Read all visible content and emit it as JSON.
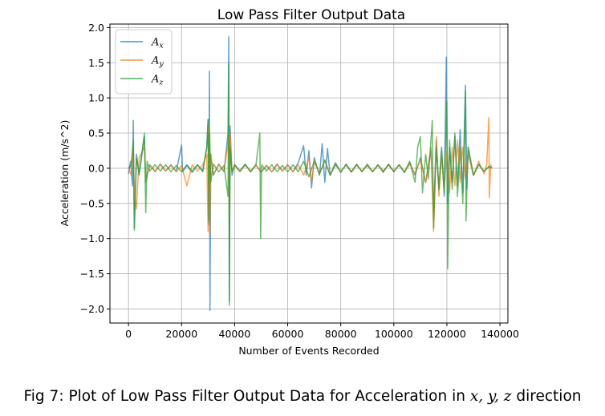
{
  "chart_data": {
    "type": "line",
    "title": "Low Pass Filter Output Data",
    "xlabel": "Number of Events Recorded",
    "ylabel": "Acceleration (m/s^2)",
    "xlim": [
      -7000,
      143000
    ],
    "ylim": [
      -2.2,
      2.05
    ],
    "xticks": [
      0,
      20000,
      40000,
      60000,
      80000,
      100000,
      120000,
      140000
    ],
    "xtick_labels": [
      "0",
      "20000",
      "40000",
      "60000",
      "80000",
      "100000",
      "120000",
      "140000"
    ],
    "yticks": [
      -2.0,
      -1.5,
      -1.0,
      -0.5,
      0.0,
      0.5,
      1.0,
      1.5,
      2.0
    ],
    "ytick_labels": [
      "−2.0",
      "−1.5",
      "−1.0",
      "−0.5",
      "0.0",
      "0.5",
      "1.0",
      "1.5",
      "2.0"
    ],
    "grid": true,
    "legend_position": "top-left",
    "series": [
      {
        "name": "A_x",
        "label_main": "A",
        "label_sub": "x",
        "color": "#1f77b4",
        "points": [
          [
            0,
            -0.08
          ],
          [
            800,
            0.1
          ],
          [
            1500,
            -0.25
          ],
          [
            1800,
            0.68
          ],
          [
            2200,
            -0.85
          ],
          [
            3000,
            0.2
          ],
          [
            4000,
            -0.1
          ],
          [
            6000,
            0.45
          ],
          [
            6500,
            -0.2
          ],
          [
            8000,
            0.05
          ],
          [
            10000,
            -0.05
          ],
          [
            12000,
            0.06
          ],
          [
            14000,
            -0.04
          ],
          [
            16000,
            0.05
          ],
          [
            18000,
            -0.05
          ],
          [
            20000,
            0.33
          ],
          [
            20400,
            -0.05
          ],
          [
            22000,
            0.04
          ],
          [
            24000,
            -0.06
          ],
          [
            26000,
            0.05
          ],
          [
            28000,
            -0.04
          ],
          [
            29500,
            0.3
          ],
          [
            30000,
            0.7
          ],
          [
            30200,
            -0.8
          ],
          [
            30500,
            1.38
          ],
          [
            30700,
            -2.02
          ],
          [
            31000,
            0.2
          ],
          [
            32000,
            -0.1
          ],
          [
            34000,
            0.06
          ],
          [
            36000,
            -0.05
          ],
          [
            37500,
            0.5
          ],
          [
            37800,
            1.87
          ],
          [
            38000,
            -1.9
          ],
          [
            38300,
            0.6
          ],
          [
            39000,
            -0.1
          ],
          [
            40000,
            0.05
          ],
          [
            42000,
            -0.04
          ],
          [
            44000,
            0.06
          ],
          [
            46000,
            -0.05
          ],
          [
            48000,
            0.05
          ],
          [
            50000,
            -0.06
          ],
          [
            52000,
            0.04
          ],
          [
            54000,
            -0.05
          ],
          [
            56000,
            0.06
          ],
          [
            58000,
            -0.04
          ],
          [
            60000,
            0.05
          ],
          [
            62000,
            -0.05
          ],
          [
            64000,
            0.08
          ],
          [
            66000,
            0.32
          ],
          [
            67000,
            -0.1
          ],
          [
            68000,
            0.25
          ],
          [
            69000,
            -0.28
          ],
          [
            70000,
            0.15
          ],
          [
            72000,
            -0.1
          ],
          [
            73000,
            0.35
          ],
          [
            74000,
            -0.2
          ],
          [
            75000,
            0.28
          ],
          [
            76000,
            -0.1
          ],
          [
            78000,
            0.08
          ],
          [
            80000,
            -0.06
          ],
          [
            82000,
            0.06
          ],
          [
            84000,
            -0.05
          ],
          [
            86000,
            0.06
          ],
          [
            88000,
            -0.05
          ],
          [
            90000,
            0.06
          ],
          [
            92000,
            -0.05
          ],
          [
            94000,
            0.05
          ],
          [
            96000,
            -0.06
          ],
          [
            98000,
            0.06
          ],
          [
            100000,
            -0.05
          ],
          [
            102000,
            0.05
          ],
          [
            104000,
            -0.06
          ],
          [
            106000,
            0.08
          ],
          [
            108000,
            -0.1
          ],
          [
            110000,
            0.15
          ],
          [
            112000,
            -0.2
          ],
          [
            114000,
            0.25
          ],
          [
            115000,
            -0.6
          ],
          [
            116000,
            0.4
          ],
          [
            117000,
            -0.3
          ],
          [
            118000,
            0.3
          ],
          [
            119000,
            -0.4
          ],
          [
            119800,
            1.58
          ],
          [
            120200,
            -0.5
          ],
          [
            121000,
            0.3
          ],
          [
            122000,
            -0.2
          ],
          [
            123000,
            0.45
          ],
          [
            124000,
            -0.25
          ],
          [
            125000,
            0.55
          ],
          [
            126000,
            -0.35
          ],
          [
            127000,
            1.18
          ],
          [
            127500,
            -0.3
          ],
          [
            128000,
            0.3
          ],
          [
            130000,
            -0.1
          ],
          [
            132000,
            0.06
          ],
          [
            134000,
            -0.05
          ],
          [
            136000,
            0.03
          ],
          [
            137000,
            0.0
          ]
        ]
      },
      {
        "name": "A_y",
        "label_main": "A",
        "label_sub": "y",
        "color": "#ff7f0e",
        "points": [
          [
            0,
            0.02
          ],
          [
            1000,
            -0.1
          ],
          [
            1800,
            0.3
          ],
          [
            2200,
            -0.35
          ],
          [
            3000,
            -0.58
          ],
          [
            4000,
            0.15
          ],
          [
            6000,
            0.3
          ],
          [
            6500,
            -0.15
          ],
          [
            8000,
            0.04
          ],
          [
            10000,
            -0.04
          ],
          [
            12000,
            0.05
          ],
          [
            14000,
            -0.04
          ],
          [
            16000,
            0.04
          ],
          [
            18000,
            -0.05
          ],
          [
            20000,
            0.04
          ],
          [
            22000,
            -0.25
          ],
          [
            24000,
            0.05
          ],
          [
            26000,
            -0.04
          ],
          [
            28000,
            0.05
          ],
          [
            29500,
            0.2
          ],
          [
            30000,
            -0.9
          ],
          [
            30300,
            0.6
          ],
          [
            30600,
            -0.95
          ],
          [
            31000,
            0.2
          ],
          [
            32000,
            -0.08
          ],
          [
            34000,
            0.05
          ],
          [
            36000,
            -0.04
          ],
          [
            37700,
            0.4
          ],
          [
            38000,
            -0.68
          ],
          [
            38300,
            0.5
          ],
          [
            39000,
            -0.05
          ],
          [
            40000,
            0.04
          ],
          [
            42000,
            -0.05
          ],
          [
            44000,
            0.05
          ],
          [
            46000,
            -0.04
          ],
          [
            48000,
            0.05
          ],
          [
            50000,
            -0.05
          ],
          [
            52000,
            0.04
          ],
          [
            54000,
            -0.05
          ],
          [
            56000,
            0.05
          ],
          [
            58000,
            -0.04
          ],
          [
            60000,
            0.05
          ],
          [
            62000,
            -0.05
          ],
          [
            64000,
            0.05
          ],
          [
            66000,
            -0.1
          ],
          [
            68000,
            0.15
          ],
          [
            69000,
            -0.2
          ],
          [
            70000,
            0.1
          ],
          [
            72000,
            -0.08
          ],
          [
            74000,
            0.1
          ],
          [
            76000,
            -0.1
          ],
          [
            78000,
            0.05
          ],
          [
            80000,
            -0.05
          ],
          [
            82000,
            0.05
          ],
          [
            84000,
            -0.06
          ],
          [
            86000,
            0.05
          ],
          [
            88000,
            -0.04
          ],
          [
            90000,
            0.05
          ],
          [
            92000,
            -0.05
          ],
          [
            94000,
            0.04
          ],
          [
            96000,
            -0.05
          ],
          [
            98000,
            0.05
          ],
          [
            100000,
            -0.04
          ],
          [
            102000,
            0.05
          ],
          [
            104000,
            -0.05
          ],
          [
            106000,
            0.06
          ],
          [
            108000,
            -0.08
          ],
          [
            110000,
            0.12
          ],
          [
            112000,
            -0.2
          ],
          [
            114000,
            0.3
          ],
          [
            115000,
            -0.9
          ],
          [
            116000,
            0.45
          ],
          [
            117000,
            -0.4
          ],
          [
            118000,
            0.2
          ],
          [
            119000,
            -0.3
          ],
          [
            120000,
            0.25
          ],
          [
            121000,
            -0.35
          ],
          [
            122000,
            0.3
          ],
          [
            123000,
            -0.25
          ],
          [
            124000,
            0.4
          ],
          [
            125000,
            -0.2
          ],
          [
            126000,
            0.3
          ],
          [
            127000,
            -0.15
          ],
          [
            128000,
            0.2
          ],
          [
            130000,
            -0.1
          ],
          [
            132000,
            0.1
          ],
          [
            134000,
            -0.08
          ],
          [
            135000,
            0.05
          ],
          [
            135800,
            0.72
          ],
          [
            136000,
            -0.42
          ],
          [
            136500,
            0.05
          ],
          [
            137000,
            0.0
          ]
        ]
      },
      {
        "name": "A_z",
        "label_main": "A",
        "label_sub": "z",
        "color": "#2ca02c",
        "points": [
          [
            0,
            0.0
          ],
          [
            1000,
            0.05
          ],
          [
            1800,
            0.4
          ],
          [
            2200,
            -0.88
          ],
          [
            3000,
            0.15
          ],
          [
            4000,
            -0.08
          ],
          [
            6000,
            0.5
          ],
          [
            6500,
            -0.63
          ],
          [
            7000,
            0.1
          ],
          [
            8000,
            -0.04
          ],
          [
            10000,
            0.05
          ],
          [
            12000,
            -0.04
          ],
          [
            14000,
            0.05
          ],
          [
            16000,
            -0.05
          ],
          [
            18000,
            0.04
          ],
          [
            20000,
            -0.05
          ],
          [
            22000,
            0.05
          ],
          [
            24000,
            -0.04
          ],
          [
            26000,
            0.05
          ],
          [
            28000,
            -0.05
          ],
          [
            29500,
            0.3
          ],
          [
            30000,
            0.68
          ],
          [
            30300,
            -0.75
          ],
          [
            30600,
            0.5
          ],
          [
            31000,
            -0.2
          ],
          [
            32000,
            0.06
          ],
          [
            34000,
            -0.05
          ],
          [
            36000,
            0.04
          ],
          [
            37500,
            -0.4
          ],
          [
            37800,
            1.48
          ],
          [
            38000,
            -1.95
          ],
          [
            38300,
            0.3
          ],
          [
            39000,
            -0.05
          ],
          [
            40000,
            0.05
          ],
          [
            42000,
            -0.04
          ],
          [
            44000,
            0.05
          ],
          [
            46000,
            -0.05
          ],
          [
            48000,
            0.04
          ],
          [
            49500,
            0.5
          ],
          [
            49800,
            -1.0
          ],
          [
            50200,
            0.05
          ],
          [
            52000,
            -0.04
          ],
          [
            54000,
            0.05
          ],
          [
            56000,
            -0.05
          ],
          [
            58000,
            0.04
          ],
          [
            60000,
            -0.05
          ],
          [
            62000,
            0.05
          ],
          [
            64000,
            -0.05
          ],
          [
            66000,
            0.1
          ],
          [
            68000,
            -0.12
          ],
          [
            70000,
            0.1
          ],
          [
            72000,
            -0.08
          ],
          [
            74000,
            0.12
          ],
          [
            76000,
            -0.1
          ],
          [
            78000,
            0.06
          ],
          [
            80000,
            -0.05
          ],
          [
            82000,
            0.05
          ],
          [
            84000,
            -0.05
          ],
          [
            86000,
            0.05
          ],
          [
            88000,
            -0.05
          ],
          [
            90000,
            0.04
          ],
          [
            92000,
            -0.05
          ],
          [
            94000,
            0.05
          ],
          [
            96000,
            -0.04
          ],
          [
            98000,
            0.05
          ],
          [
            100000,
            -0.05
          ],
          [
            102000,
            0.05
          ],
          [
            104000,
            -0.06
          ],
          [
            106000,
            0.1
          ],
          [
            108000,
            -0.2
          ],
          [
            109000,
            0.3
          ],
          [
            110000,
            0.45
          ],
          [
            110800,
            -0.35
          ],
          [
            112000,
            0.2
          ],
          [
            113000,
            -0.15
          ],
          [
            114500,
            0.68
          ],
          [
            115000,
            -0.85
          ],
          [
            116000,
            0.3
          ],
          [
            117000,
            -0.3
          ],
          [
            118000,
            0.25
          ],
          [
            119000,
            -0.35
          ],
          [
            120000,
            0.95
          ],
          [
            120300,
            -1.43
          ],
          [
            121000,
            0.4
          ],
          [
            122000,
            -0.3
          ],
          [
            123000,
            0.5
          ],
          [
            124000,
            -0.4
          ],
          [
            125000,
            0.3
          ],
          [
            126000,
            -0.5
          ],
          [
            127000,
            1.1
          ],
          [
            127200,
            -0.75
          ],
          [
            128000,
            0.3
          ],
          [
            130000,
            -0.1
          ],
          [
            132000,
            0.05
          ],
          [
            134000,
            -0.04
          ],
          [
            136000,
            0.03
          ],
          [
            137000,
            0.0
          ]
        ]
      }
    ]
  },
  "caption": {
    "prefix": "Fig 7: Plot of Low Pass Filter Output Data for Acceleration in ",
    "math": "x, y, z",
    "suffix": " direction"
  }
}
